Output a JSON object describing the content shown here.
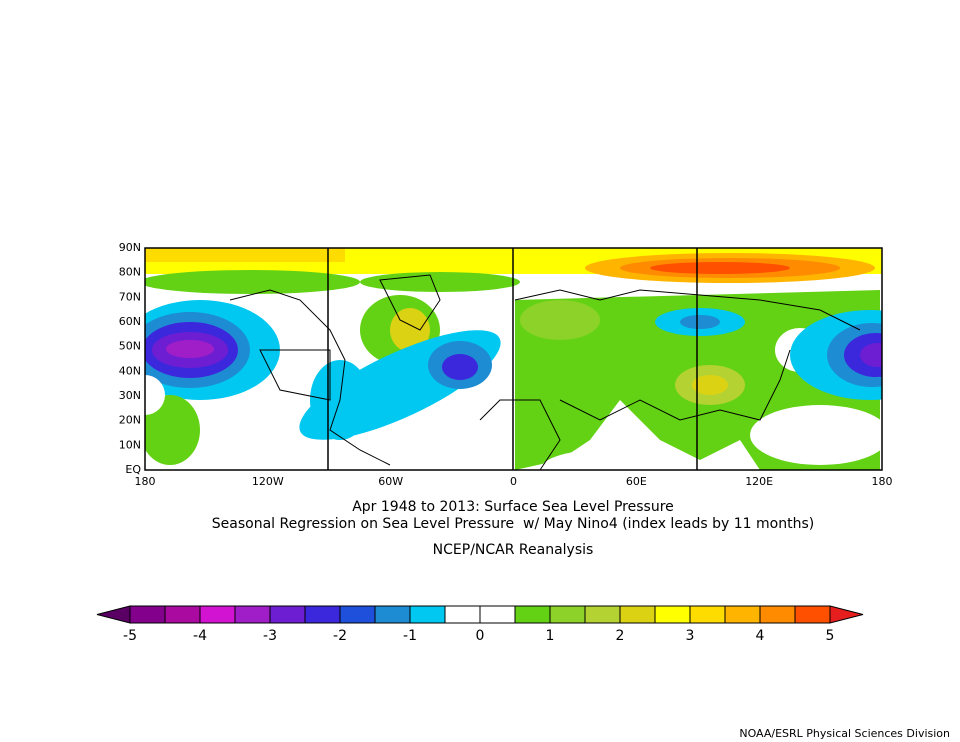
{
  "map": {
    "title_lines": [
      "Apr 1948 to 2013: Surface Sea Level Pressure",
      "Seasonal Regression on Sea Level Pressure  w/ May Nino4 (index leads by 11 months)"
    ],
    "source": "NCEP/NCAR Reanalysis",
    "lon_labels": [
      "180",
      "120W",
      "60W",
      "0",
      "60E",
      "120E",
      "180"
    ],
    "lat_labels": [
      "90N",
      "80N",
      "70N",
      "60N",
      "50N",
      "40N",
      "30N",
      "20N",
      "10N",
      "EQ"
    ],
    "colorbar": {
      "ticks": [
        -5,
        -4,
        -3,
        -2,
        -1,
        0,
        1,
        2,
        3,
        4,
        5
      ],
      "colors": [
        "#5a0064",
        "#82008c",
        "#aa0aa0",
        "#d214d2",
        "#a01ec8",
        "#6e1ed2",
        "#3c28dc",
        "#1e50dc",
        "#1e8cd2",
        "#00c8f0",
        "#ffffff",
        "#ffffff",
        "#64d214",
        "#8cd228",
        "#b4d232",
        "#dcd214",
        "#ffff00",
        "#ffdc00",
        "#ffb400",
        "#ff8c00",
        "#ff5000",
        "#e61e1e"
      ]
    }
  },
  "footer": "NOAA/ESRL Physical Sciences Division"
}
